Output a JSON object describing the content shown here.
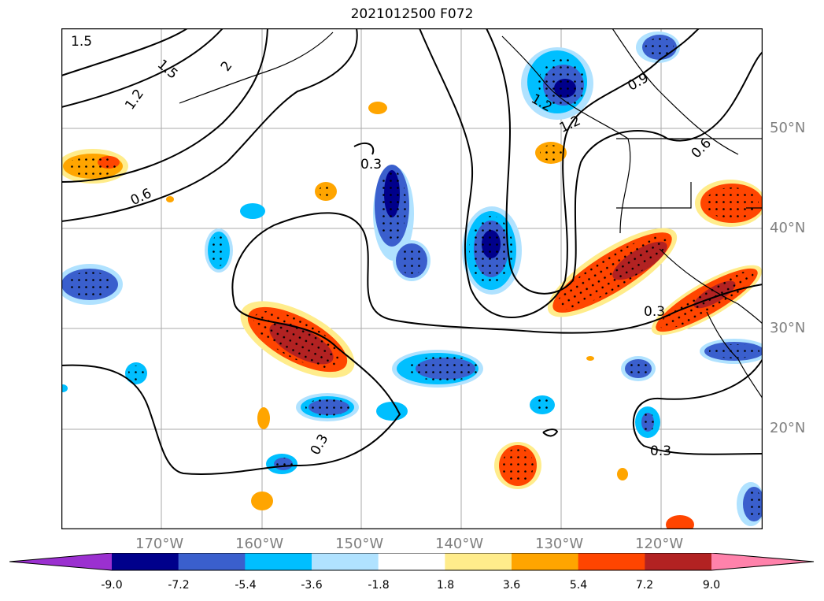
{
  "title": "2021012500 F072",
  "lon_labels": [
    "170°W",
    "160°W",
    "150°W",
    "140°W",
    "130°W",
    "120°W"
  ],
  "lat_labels": [
    "50°N",
    "40°N",
    "30°N",
    "20°N"
  ],
  "contour_labels": [
    "1.5",
    "1.5",
    "2",
    "1.2",
    "0.6",
    "0.3",
    "1.2",
    "0.9",
    "1.2",
    "0.6",
    "0.3",
    "0.3",
    "0.3"
  ],
  "colorbar": {
    "ticks": [
      "-9.0",
      "-7.2",
      "-5.4",
      "-3.6",
      "-1.8",
      "1.8",
      "3.6",
      "5.4",
      "7.2",
      "9.0"
    ],
    "colors": [
      "#9b30d0",
      "#00008b",
      "#3a5fcd",
      "#00bfff",
      "#b0e2ff",
      "#ffffff",
      "#ffec8b",
      "#ffa500",
      "#ff4500",
      "#b22222",
      "#ff82ab"
    ]
  }
}
